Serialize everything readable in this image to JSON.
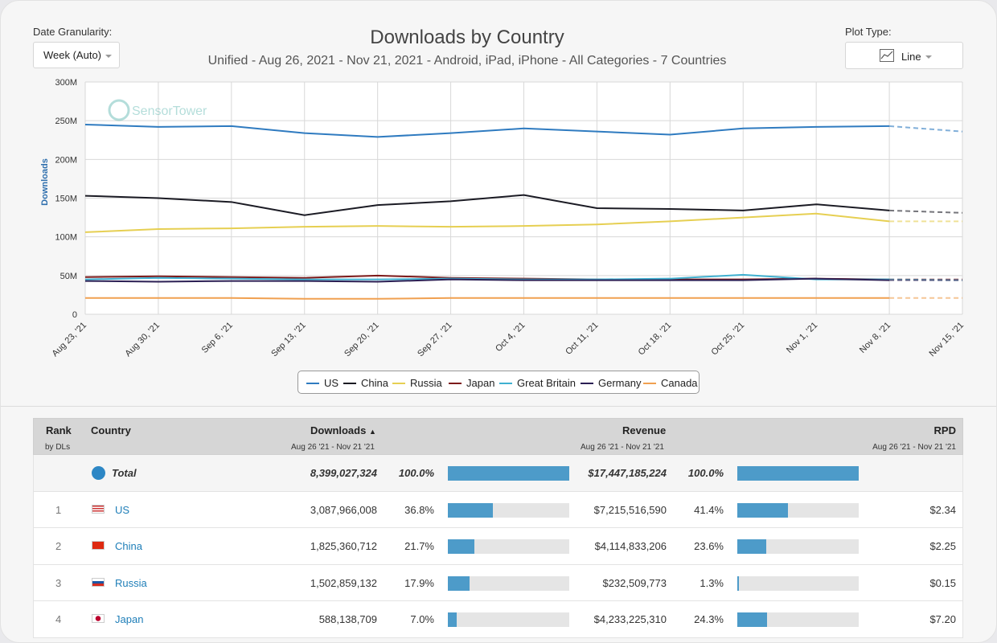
{
  "controls": {
    "granularity_label": "Date Granularity:",
    "granularity_value": "Week (Auto)",
    "plot_type_label": "Plot Type:",
    "plot_type_value": "Line"
  },
  "watermark": "SensorTower",
  "chart_data": {
    "type": "line",
    "title": "Downloads by Country",
    "subtitle": "Unified - Aug 26, 2021 - Nov 21, 2021 - Android, iPad, iPhone - All Categories - 7 Countries",
    "ylabel": "Downloads",
    "xlabel": "",
    "ylim": [
      0,
      300000000
    ],
    "y_ticks": [
      "0",
      "50M",
      "100M",
      "150M",
      "200M",
      "250M",
      "300M"
    ],
    "categories": [
      "Aug 23, '21",
      "Aug 30, '21",
      "Sep 6, '21",
      "Sep 13, '21",
      "Sep 20, '21",
      "Sep 27, '21",
      "Oct 4, '21",
      "Oct 11, '21",
      "Oct 18, '21",
      "Oct 25, '21",
      "Nov 1, '21",
      "Nov 8, '21",
      "Nov 15, '21"
    ],
    "projected_last_point": true,
    "grid": true,
    "legend_position": "bottom",
    "series": [
      {
        "name": "US",
        "color": "#2f7bc0",
        "values": [
          245,
          242,
          243,
          234,
          229,
          234,
          240,
          236,
          232,
          240,
          242,
          243,
          236
        ]
      },
      {
        "name": "China",
        "color": "#1b1b24",
        "values": [
          153,
          150,
          145,
          128,
          141,
          146,
          154,
          137,
          136,
          134,
          142,
          134,
          131
        ]
      },
      {
        "name": "Russia",
        "color": "#e6cf52",
        "values": [
          106,
          110,
          111,
          113,
          114,
          113,
          114,
          116,
          120,
          125,
          130,
          120,
          120
        ]
      },
      {
        "name": "Japan",
        "color": "#7d1a1a",
        "values": [
          48,
          49,
          48,
          47,
          50,
          47,
          46,
          45,
          45,
          45,
          46,
          45,
          45
        ]
      },
      {
        "name": "Great Britain",
        "color": "#3fb0d0",
        "values": [
          45,
          47,
          46,
          45,
          45,
          46,
          45,
          45,
          46,
          51,
          45,
          45,
          44
        ]
      },
      {
        "name": "Germany",
        "color": "#2b1f54",
        "values": [
          43,
          42,
          43,
          43,
          42,
          45,
          44,
          44,
          44,
          44,
          46,
          44,
          44
        ]
      },
      {
        "name": "Canada",
        "color": "#f0a050",
        "values": [
          21,
          21,
          21,
          20,
          20,
          21,
          21,
          21,
          21,
          21,
          21,
          21,
          21
        ]
      }
    ],
    "value_unit": "M"
  },
  "table": {
    "headers": {
      "rank": "Rank",
      "rank_sub": "by DLs",
      "country": "Country",
      "downloads": "Downloads",
      "downloads_sort": "▲",
      "downloads_sub": "Aug 26 '21 - Nov 21 '21",
      "revenue": "Revenue",
      "revenue_sub": "Aug 26 '21 - Nov 21 '21",
      "rpd": "RPD",
      "rpd_sub": "Aug 26 '21 - Nov 21 '21"
    },
    "total": {
      "label": "Total",
      "downloads": "8,399,027,324",
      "downloads_pct": "100.0%",
      "downloads_share": 1.0,
      "revenue": "$17,447,185,224",
      "revenue_pct": "100.0%",
      "revenue_share": 1.0
    },
    "rows": [
      {
        "rank": "1",
        "country": "US",
        "flag": "us-flag",
        "downloads": "3,087,966,008",
        "downloads_pct": "36.8%",
        "downloads_share": 0.368,
        "revenue": "$7,215,516,590",
        "revenue_pct": "41.4%",
        "revenue_share": 0.414,
        "rpd": "$2.34"
      },
      {
        "rank": "2",
        "country": "China",
        "flag": "china-flag",
        "downloads": "1,825,360,712",
        "downloads_pct": "21.7%",
        "downloads_share": 0.217,
        "revenue": "$4,114,833,206",
        "revenue_pct": "23.6%",
        "revenue_share": 0.236,
        "rpd": "$2.25"
      },
      {
        "rank": "3",
        "country": "Russia",
        "flag": "russia-flag",
        "downloads": "1,502,859,132",
        "downloads_pct": "17.9%",
        "downloads_share": 0.179,
        "revenue": "$232,509,773",
        "revenue_pct": "1.3%",
        "revenue_share": 0.013,
        "rpd": "$0.15"
      },
      {
        "rank": "4",
        "country": "Japan",
        "flag": "japan-flag",
        "downloads": "588,138,709",
        "downloads_pct": "7.0%",
        "downloads_share": 0.07,
        "revenue": "$4,233,225,310",
        "revenue_pct": "24.3%",
        "revenue_share": 0.243,
        "rpd": "$7.20"
      }
    ]
  }
}
